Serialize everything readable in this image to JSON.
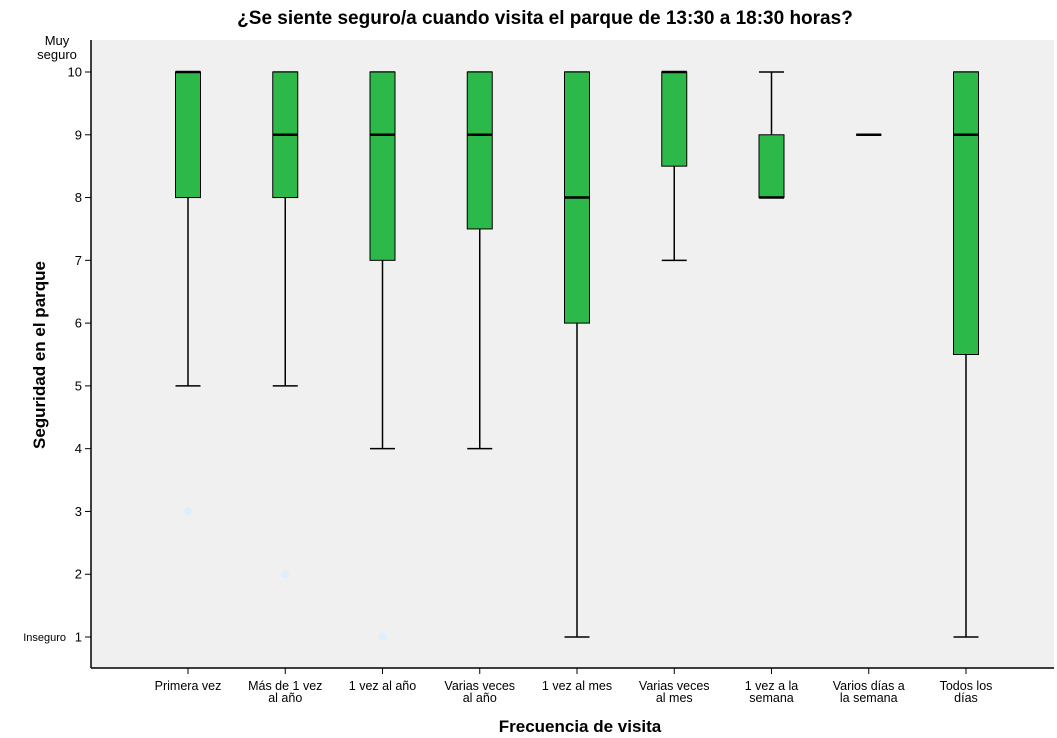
{
  "chart_data": {
    "type": "boxplot",
    "title": "¿Se siente seguro/a cuando visita el parque de 13:30 a 18:30 horas?",
    "xlabel": "Frecuencia de visita",
    "ylabel": "Seguridad en el parque",
    "ylim": [
      0.5,
      10.5
    ],
    "yticks": [
      1,
      2,
      3,
      4,
      5,
      6,
      7,
      8,
      9,
      10
    ],
    "ytick_labels": [
      "1",
      "2",
      "3",
      "4",
      "5",
      "6",
      "7",
      "8",
      "9",
      "10"
    ],
    "y_annotations": {
      "top": [
        "Muy",
        "seguro"
      ],
      "bottom": "Inseguro"
    },
    "categories": [
      [
        "Primera vez"
      ],
      [
        "Más de 1 vez",
        "al año"
      ],
      [
        "1 vez al año"
      ],
      [
        "Varias veces",
        "al año"
      ],
      [
        "1 vez al mes"
      ],
      [
        "Varias veces",
        "al mes"
      ],
      [
        "1 vez a la",
        "semana"
      ],
      [
        "Varios días a",
        "la semana"
      ],
      [
        "Todos los",
        "días"
      ]
    ],
    "boxes": [
      {
        "whisker_low": 5,
        "q1": 8,
        "median": 10,
        "q3": 10,
        "whisker_high": 10,
        "outliers": [
          3
        ]
      },
      {
        "whisker_low": 5,
        "q1": 8,
        "median": 9,
        "q3": 10,
        "whisker_high": 10,
        "outliers": [
          2
        ]
      },
      {
        "whisker_low": 4,
        "q1": 7,
        "median": 9,
        "q3": 10,
        "whisker_high": 10,
        "outliers": [
          1
        ]
      },
      {
        "whisker_low": 4,
        "q1": 7.5,
        "median": 9,
        "q3": 10,
        "whisker_high": 10,
        "outliers": []
      },
      {
        "whisker_low": 1,
        "q1": 6,
        "median": 8,
        "q3": 10,
        "whisker_high": 10,
        "outliers": []
      },
      {
        "whisker_low": 7,
        "q1": 8.5,
        "median": 10,
        "q3": 10,
        "whisker_high": 10,
        "outliers": []
      },
      {
        "whisker_low": 8,
        "q1": 8,
        "median": 8,
        "q3": 9,
        "whisker_high": 10,
        "outliers": []
      },
      {
        "whisker_low": 9,
        "q1": 9,
        "median": 9,
        "q3": 9,
        "whisker_high": 9,
        "outliers": []
      },
      {
        "whisker_low": 1,
        "q1": 5.5,
        "median": 9,
        "q3": 10,
        "whisker_high": 10,
        "outliers": []
      }
    ],
    "colors": {
      "box_fill": "#2db84a",
      "box_stroke": "#000000",
      "plot_background": "#f0f0f0",
      "outlier": "#ddeeff"
    },
    "grid": false,
    "legend": "none"
  }
}
